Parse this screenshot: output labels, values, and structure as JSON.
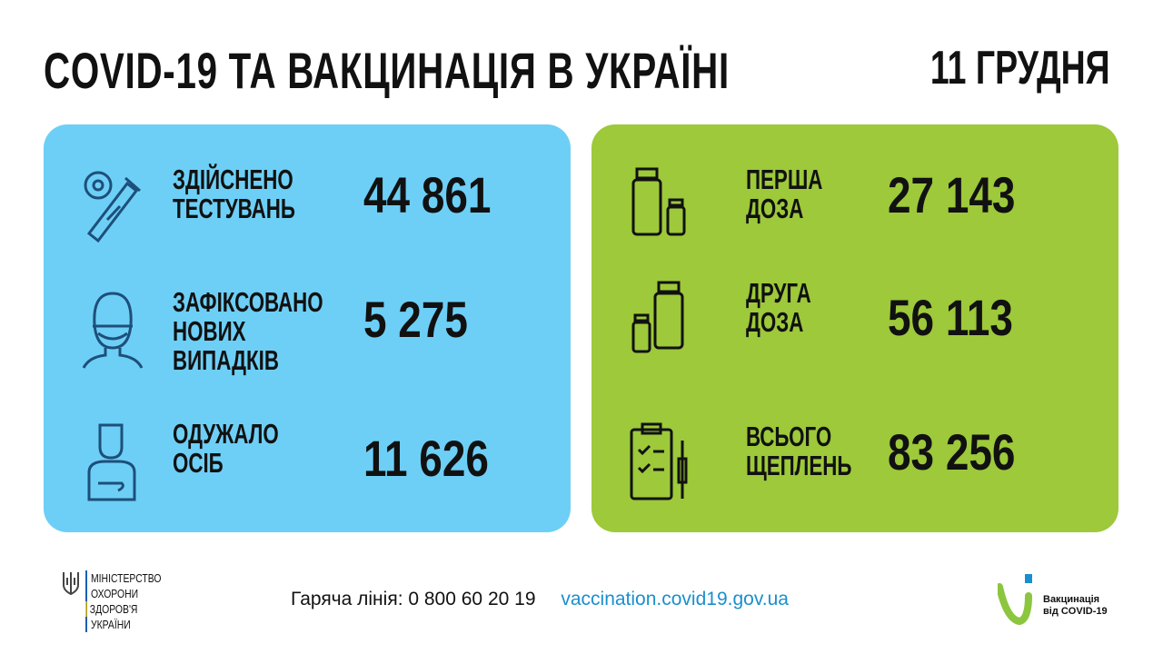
{
  "header": {
    "title": "COVID-19 ТА ВАКЦИНАЦІЯ В УКРАЇНІ",
    "date": "11 ГРУДНЯ"
  },
  "colors": {
    "blue_panel": "#6dcff6",
    "green_panel": "#9dc93a",
    "link": "#1a8fce",
    "icon_blue": "#1d4f7a"
  },
  "left": [
    {
      "icon": "test-tube-virus-icon",
      "label": [
        "ЗДІЙСНЕНО",
        "ТЕСТУВАНЬ"
      ],
      "value": "44 861"
    },
    {
      "icon": "masked-person-icon",
      "label": [
        "ЗАФІКСОВАНО",
        "НОВИХ",
        "ВИПАДКІВ"
      ],
      "value": "5 275"
    },
    {
      "icon": "recovered-person-icon",
      "label": [
        "ОДУЖАЛО",
        "ОСІБ"
      ],
      "value": "11 626"
    }
  ],
  "right": [
    {
      "icon": "vaccine-vials-icon",
      "label": [
        "ПЕРША",
        "ДОЗА"
      ],
      "value": "27 143"
    },
    {
      "icon": "vaccine-vials-icon",
      "label": [
        "ДРУГА",
        "ДОЗА"
      ],
      "value": "56 113"
    },
    {
      "icon": "clipboard-syringe-icon",
      "label": [
        "ВСЬОГО",
        "ЩЕПЛЕНЬ"
      ],
      "value": "83 256"
    }
  ],
  "footer": {
    "hotline": "Гаряча лінія: 0 800 60 20 19",
    "site": "vaccination.covid19.gov.ua"
  },
  "ministry": [
    "МІНІСТЕРСТВО",
    "ОХОРОНИ",
    "ЗДОРОВ'Я",
    "УКРАЇНИ"
  ],
  "vaccination_logo": [
    "Вакцинація",
    "від COVID-19"
  ]
}
